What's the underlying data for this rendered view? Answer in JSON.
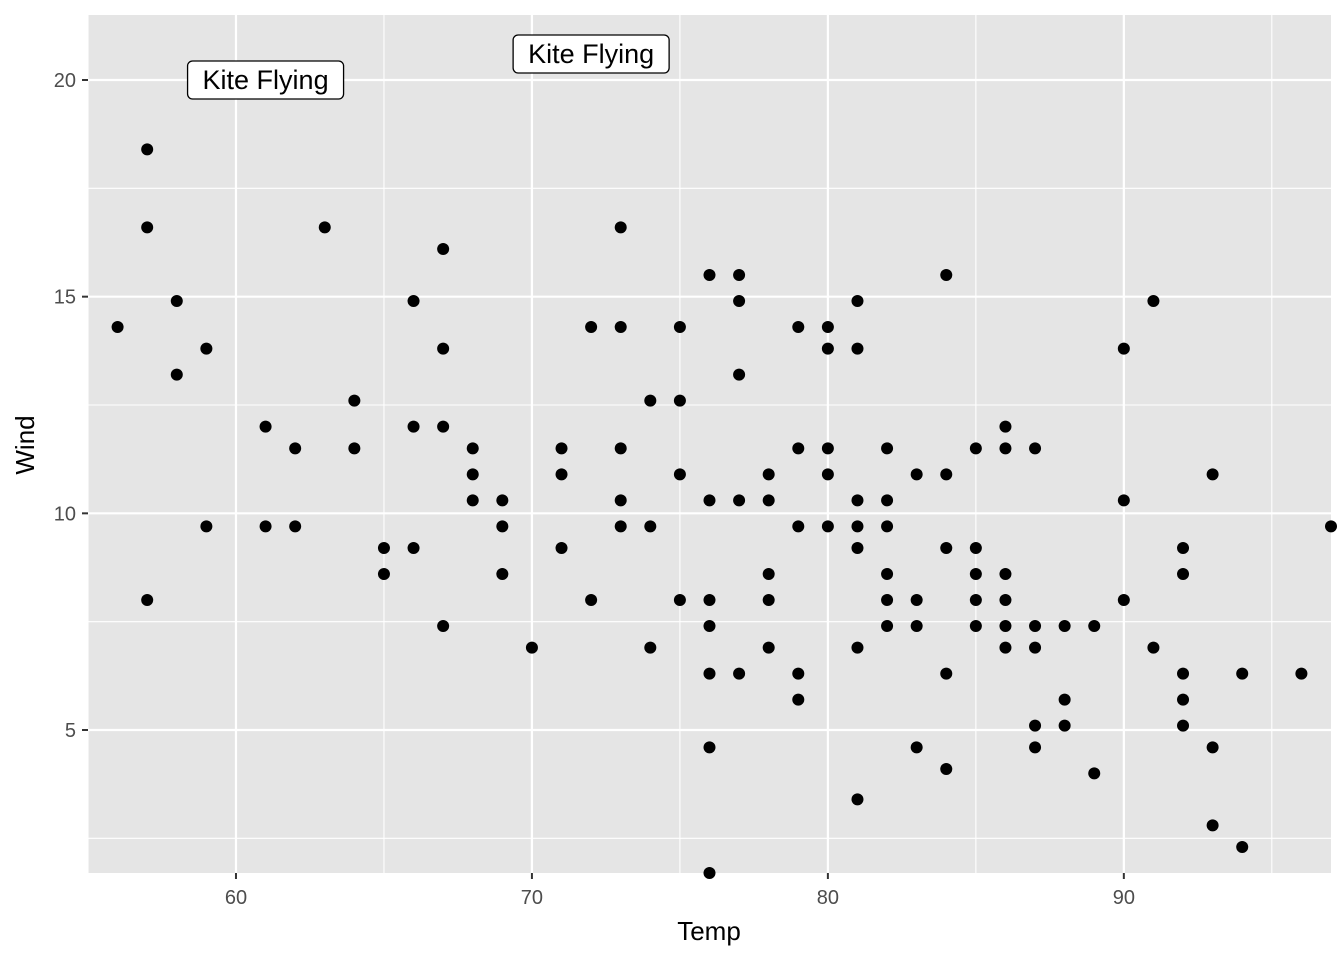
{
  "chart_data": {
    "type": "scatter",
    "xlabel": "Temp",
    "ylabel": "Wind",
    "xlim": [
      55,
      97
    ],
    "ylim": [
      1.7,
      21.5
    ],
    "x_ticks": [
      60,
      70,
      80,
      90
    ],
    "x_tick_labels": [
      "60",
      "70",
      "80",
      "90"
    ],
    "y_ticks": [
      5,
      10,
      15,
      20
    ],
    "y_tick_labels": [
      "5",
      "10",
      "15",
      "20"
    ],
    "x_minor_ticks": [
      55,
      65,
      75,
      85,
      95
    ],
    "y_minor_ticks": [
      2.5,
      7.5,
      12.5,
      17.5
    ],
    "grid": true,
    "legend": false,
    "colors": {
      "panel_background": "#e5e5e5",
      "grid": "#ffffff",
      "points": "#000000"
    },
    "annotations": [
      {
        "text": "Kite Flying",
        "x": 61,
        "y": 20,
        "style": "label-box"
      },
      {
        "text": "Kite Flying",
        "x": 72,
        "y": 20.6,
        "style": "label-box"
      }
    ],
    "points": [
      [
        56,
        14.3
      ],
      [
        57,
        18.4
      ],
      [
        57,
        16.6
      ],
      [
        57,
        8.0
      ],
      [
        58,
        14.9
      ],
      [
        58,
        13.2
      ],
      [
        59,
        13.8
      ],
      [
        59,
        9.7
      ],
      [
        61,
        12.0
      ],
      [
        61,
        9.7
      ],
      [
        62,
        11.5
      ],
      [
        62,
        9.7
      ],
      [
        63,
        16.6
      ],
      [
        64,
        12.6
      ],
      [
        64,
        11.5
      ],
      [
        65,
        9.2
      ],
      [
        65,
        8.6
      ],
      [
        66,
        14.9
      ],
      [
        66,
        12.0
      ],
      [
        66,
        9.2
      ],
      [
        67,
        16.1
      ],
      [
        67,
        13.8
      ],
      [
        67,
        12.0
      ],
      [
        67,
        7.4
      ],
      [
        68,
        11.5
      ],
      [
        68,
        10.9
      ],
      [
        68,
        10.3
      ],
      [
        69,
        10.3
      ],
      [
        69,
        9.7
      ],
      [
        69,
        8.6
      ],
      [
        70,
        6.9
      ],
      [
        71,
        11.5
      ],
      [
        71,
        10.9
      ],
      [
        71,
        9.2
      ],
      [
        72,
        14.3
      ],
      [
        72,
        8.0
      ],
      [
        73,
        16.6
      ],
      [
        73,
        14.3
      ],
      [
        73,
        11.5
      ],
      [
        73,
        10.3
      ],
      [
        73,
        9.7
      ],
      [
        74,
        12.6
      ],
      [
        74,
        9.7
      ],
      [
        74,
        6.9
      ],
      [
        75,
        14.3
      ],
      [
        75,
        12.6
      ],
      [
        75,
        10.9
      ],
      [
        75,
        8.0
      ],
      [
        76,
        15.5
      ],
      [
        76,
        10.3
      ],
      [
        76,
        8.0
      ],
      [
        76,
        7.4
      ],
      [
        76,
        6.3
      ],
      [
        76,
        4.6
      ],
      [
        76,
        1.7
      ],
      [
        77,
        15.5
      ],
      [
        77,
        14.9
      ],
      [
        77,
        13.2
      ],
      [
        77,
        10.3
      ],
      [
        77,
        6.3
      ],
      [
        78,
        10.9
      ],
      [
        78,
        10.3
      ],
      [
        78,
        8.6
      ],
      [
        78,
        8.0
      ],
      [
        78,
        6.9
      ],
      [
        79,
        14.3
      ],
      [
        79,
        11.5
      ],
      [
        79,
        9.7
      ],
      [
        79,
        6.3
      ],
      [
        79,
        5.7
      ],
      [
        80,
        14.3
      ],
      [
        80,
        13.8
      ],
      [
        80,
        11.5
      ],
      [
        80,
        10.9
      ],
      [
        80,
        9.7
      ],
      [
        81,
        14.9
      ],
      [
        81,
        13.8
      ],
      [
        81,
        10.3
      ],
      [
        81,
        9.7
      ],
      [
        81,
        9.2
      ],
      [
        81,
        6.9
      ],
      [
        81,
        3.4
      ],
      [
        82,
        11.5
      ],
      [
        82,
        10.3
      ],
      [
        82,
        9.7
      ],
      [
        82,
        8.6
      ],
      [
        82,
        8.0
      ],
      [
        82,
        7.4
      ],
      [
        83,
        10.9
      ],
      [
        83,
        8.0
      ],
      [
        83,
        7.4
      ],
      [
        83,
        4.6
      ],
      [
        84,
        15.5
      ],
      [
        84,
        10.9
      ],
      [
        84,
        9.2
      ],
      [
        84,
        6.3
      ],
      [
        84,
        4.1
      ],
      [
        85,
        11.5
      ],
      [
        85,
        9.2
      ],
      [
        85,
        8.6
      ],
      [
        85,
        8.0
      ],
      [
        85,
        7.4
      ],
      [
        86,
        12.0
      ],
      [
        86,
        11.5
      ],
      [
        86,
        8.6
      ],
      [
        86,
        8.0
      ],
      [
        86,
        7.4
      ],
      [
        86,
        6.9
      ],
      [
        87,
        11.5
      ],
      [
        87,
        7.4
      ],
      [
        87,
        6.9
      ],
      [
        87,
        5.1
      ],
      [
        87,
        4.6
      ],
      [
        88,
        7.4
      ],
      [
        88,
        5.7
      ],
      [
        88,
        5.1
      ],
      [
        89,
        7.4
      ],
      [
        89,
        4.0
      ],
      [
        90,
        13.8
      ],
      [
        90,
        10.3
      ],
      [
        90,
        8.0
      ],
      [
        91,
        14.9
      ],
      [
        91,
        6.9
      ],
      [
        92,
        9.2
      ],
      [
        92,
        8.6
      ],
      [
        92,
        6.3
      ],
      [
        92,
        5.7
      ],
      [
        92,
        5.1
      ],
      [
        93,
        10.9
      ],
      [
        93,
        4.6
      ],
      [
        93,
        2.8
      ],
      [
        94,
        6.3
      ],
      [
        94,
        2.3
      ],
      [
        96,
        6.3
      ],
      [
        97,
        9.7
      ]
    ]
  }
}
